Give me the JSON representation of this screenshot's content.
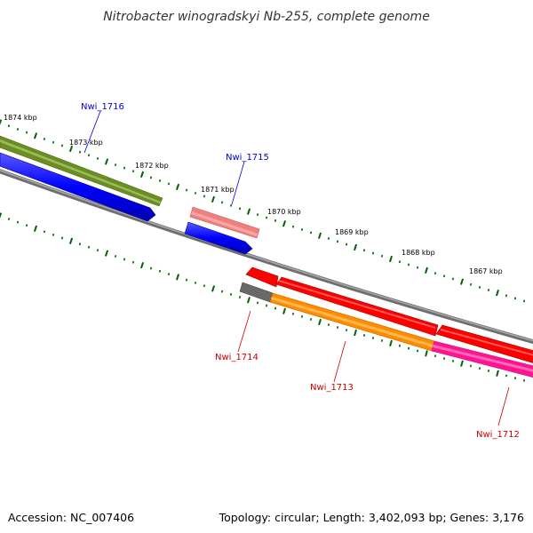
{
  "title": "Nitrobacter winogradskyi Nb-255, complete genome",
  "scale": {
    "unit": "kbp",
    "ticks": [
      {
        "kbp": 1874,
        "label": "1874 kbp"
      },
      {
        "kbp": 1873,
        "label": "1873 kbp"
      },
      {
        "kbp": 1872,
        "label": "1872 kbp"
      },
      {
        "kbp": 1871,
        "label": "1871 kbp"
      },
      {
        "kbp": 1870,
        "label": "1870 kbp"
      },
      {
        "kbp": 1869,
        "label": "1869 kbp"
      },
      {
        "kbp": 1868,
        "label": "1868 kbp"
      },
      {
        "kbp": 1867,
        "label": "1867 kbp"
      }
    ]
  },
  "genes": [
    {
      "id": "Nwi_1716",
      "label": "Nwi_1716",
      "strand": "forward",
      "label_color": "#0000cc"
    },
    {
      "id": "Nwi_1715",
      "label": "Nwi_1715",
      "strand": "forward",
      "label_color": "#0000cc"
    },
    {
      "id": "Nwi_1714",
      "label": "Nwi_1714",
      "strand": "reverse",
      "label_color": "#cc0000"
    },
    {
      "id": "Nwi_1713",
      "label": "Nwi_1713",
      "strand": "reverse",
      "label_color": "#cc0000"
    },
    {
      "id": "Nwi_1712",
      "label": "Nwi_1712",
      "strand": "reverse",
      "label_color": "#cc0000"
    }
  ],
  "colors": {
    "backbone": "#808080",
    "cds_forward": "#0000ff",
    "cds_reverse": "#ff0000",
    "cog_olive": "#6b8e23",
    "cog_pink": "#f08080",
    "cog_grey": "#696969",
    "cog_orange": "#ff8c00",
    "cog_magenta": "#ff1493",
    "tick": "#006400"
  },
  "footer": {
    "accession": "Accession: NC_007406",
    "summary": "Topology: circular; Length: 3,402,093 bp; Genes: 3,176"
  }
}
